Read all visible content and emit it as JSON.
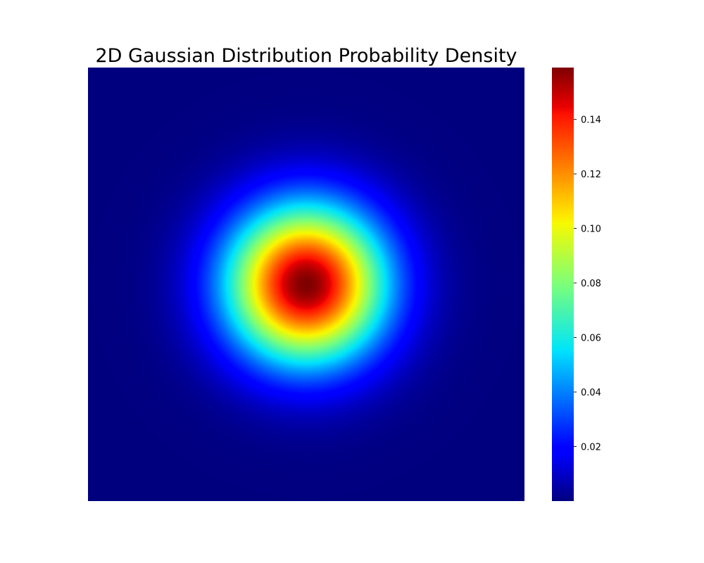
{
  "chart_data": {
    "type": "heatmap",
    "title": "2D Gaussian Distribution Probability Density",
    "colormap": "jet",
    "distribution": {
      "mean": [
        0,
        0
      ],
      "sigma": 1.0
    },
    "z_range": [
      0.0,
      0.159
    ],
    "peak_value": 0.159,
    "axes_visible": false,
    "colorbar": {
      "position": "right",
      "range": [
        0.0,
        0.159
      ],
      "ticks": [
        0.02,
        0.04,
        0.06,
        0.08,
        0.1,
        0.12,
        0.14
      ],
      "tick_labels": [
        "0.02",
        "0.04",
        "0.06",
        "0.08",
        "0.10",
        "0.12",
        "0.14"
      ]
    },
    "colors": {
      "jet_stops": [
        {
          "t": 0.0,
          "color": "#00007f"
        },
        {
          "t": 0.11,
          "color": "#0000ff"
        },
        {
          "t": 0.125,
          "color": "#0000ff"
        },
        {
          "t": 0.34,
          "color": "#00dbff"
        },
        {
          "t": 0.35,
          "color": "#00e5f8"
        },
        {
          "t": 0.5,
          "color": "#7cff79"
        },
        {
          "t": 0.64,
          "color": "#f6f900"
        },
        {
          "t": 0.66,
          "color": "#ffe600"
        },
        {
          "t": 0.89,
          "color": "#ff1300"
        },
        {
          "t": 0.91,
          "color": "#e80000"
        },
        {
          "t": 1.0,
          "color": "#7f0000"
        }
      ]
    }
  }
}
